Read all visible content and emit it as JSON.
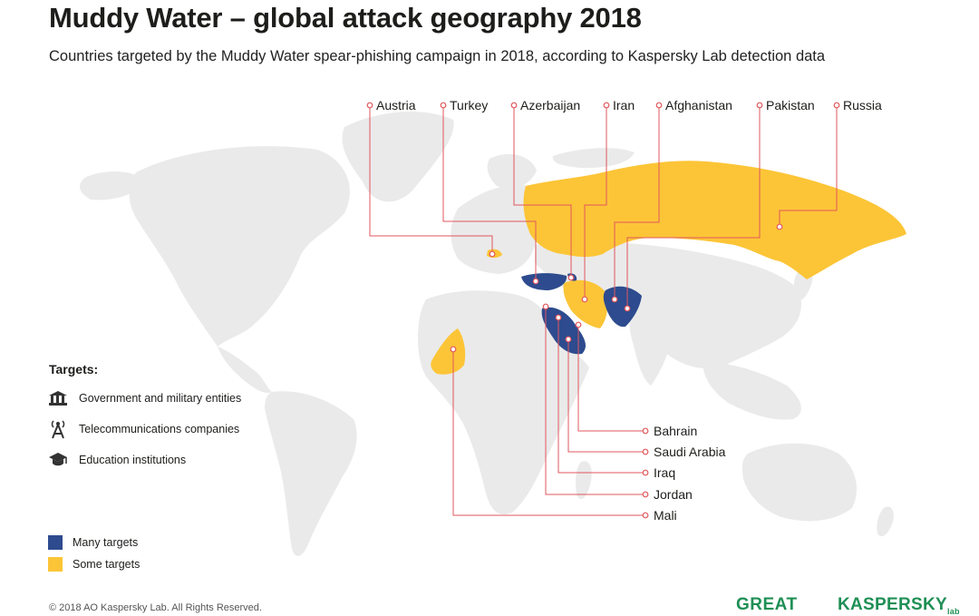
{
  "title": "Muddy Water – global attack geography 2018",
  "subtitle": "Countries targeted by the Muddy Water spear-phishing campaign in 2018, according to Kaspersky Lab detection data",
  "colors": {
    "many": "#2d4b8e",
    "some": "#fcc537",
    "land": "#eaeaea",
    "leader": "#e2575c"
  },
  "top_labels": [
    "Austria",
    "Turkey",
    "Azerbaijan",
    "Iran",
    "Afghanistan",
    "Pakistan",
    "Russia"
  ],
  "right_labels": [
    "Bahrain",
    "Saudi Arabia",
    "Iraq",
    "Jordan",
    "Mali"
  ],
  "targets": {
    "heading": "Targets:",
    "items": [
      {
        "label": "Government and military entities",
        "icon": "government-building-icon"
      },
      {
        "label": "Telecommunications companies",
        "icon": "antenna-tower-icon"
      },
      {
        "label": "Education institutions",
        "icon": "graduation-cap-icon"
      }
    ]
  },
  "legend": [
    {
      "label": "Many targets",
      "color": "#2d4b8e"
    },
    {
      "label": "Some targets",
      "color": "#fcc537"
    }
  ],
  "footer": "© 2018 AO Kaspersky Lab. All Rights Reserved.",
  "logos": {
    "great": "GREAT",
    "kaspersky": "KASPERSKY",
    "kaspersky_sub": "lab"
  }
}
